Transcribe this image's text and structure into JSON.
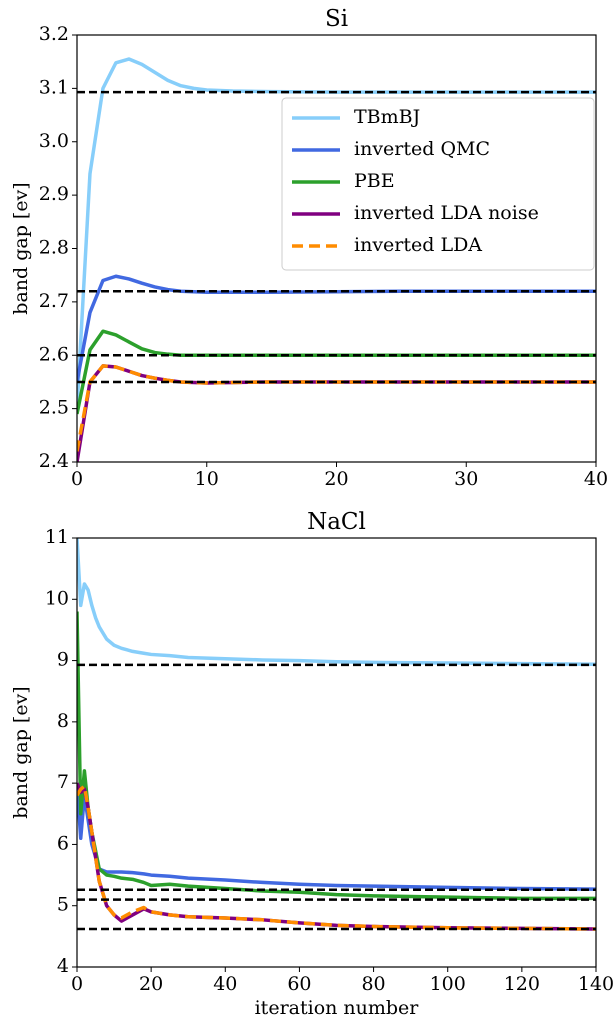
{
  "chart_data": [
    {
      "type": "line",
      "title": "Si",
      "ylabel": "band gap [ev]",
      "x": [
        0,
        1,
        2,
        3,
        4,
        5,
        6,
        7,
        8,
        9,
        10,
        12,
        15,
        20,
        25,
        30,
        35,
        40
      ],
      "xlim": [
        0,
        40
      ],
      "xticks": [
        0,
        10,
        20,
        30,
        40
      ],
      "ylim": [
        2.4,
        3.2
      ],
      "yticks": [
        {
          "value": 2.4,
          "label": "2.4"
        },
        2.5,
        2.6,
        2.7,
        2.8,
        2.9,
        {
          "value": 3.0,
          "label": "3.0"
        },
        3.1,
        3.2
      ],
      "hlines": [
        3.093,
        2.72,
        2.6,
        2.55
      ],
      "legend": "upper right",
      "series": [
        {
          "name": "TBmBJ",
          "color": "#87cefa",
          "values": [
            2.5,
            2.94,
            3.1,
            3.148,
            3.155,
            3.145,
            3.13,
            3.115,
            3.105,
            3.1,
            3.097,
            3.095,
            3.094,
            3.093,
            3.093,
            3.093,
            3.093,
            3.093
          ]
        },
        {
          "name": "inverted QMC",
          "color": "#4169e1",
          "values": [
            2.55,
            2.68,
            2.74,
            2.748,
            2.743,
            2.735,
            2.728,
            2.723,
            2.72,
            2.719,
            2.718,
            2.718,
            2.718,
            2.719,
            2.72,
            2.72,
            2.72,
            2.72
          ]
        },
        {
          "name": "PBE",
          "color": "#2ca02c",
          "values": [
            2.49,
            2.61,
            2.645,
            2.638,
            2.625,
            2.612,
            2.605,
            2.602,
            2.6,
            2.6,
            2.6,
            2.6,
            2.6,
            2.6,
            2.6,
            2.6,
            2.6,
            2.6
          ]
        },
        {
          "name": "inverted LDA noise",
          "color": "#800080",
          "values": [
            2.4,
            2.55,
            2.58,
            2.578,
            2.57,
            2.562,
            2.557,
            2.553,
            2.55,
            2.549,
            2.548,
            2.549,
            2.55,
            2.55,
            2.55,
            2.55,
            2.55,
            2.55
          ]
        },
        {
          "name": "inverted LDA",
          "color": "#ff8c00",
          "dashed": true,
          "values": [
            2.42,
            2.55,
            2.58,
            2.578,
            2.57,
            2.562,
            2.557,
            2.553,
            2.55,
            2.549,
            2.548,
            2.549,
            2.55,
            2.55,
            2.55,
            2.55,
            2.55,
            2.55
          ]
        }
      ]
    },
    {
      "type": "line",
      "title": "NaCl",
      "ylabel": "band gap [ev]",
      "xlabel": "iteration number",
      "x": [
        0,
        1,
        2,
        3,
        4,
        5,
        6,
        8,
        10,
        12,
        15,
        18,
        20,
        25,
        30,
        40,
        50,
        60,
        70,
        80,
        100,
        120,
        140
      ],
      "xlim": [
        0,
        140
      ],
      "xticks": [
        0,
        20,
        40,
        60,
        80,
        100,
        120,
        140
      ],
      "ylim": [
        4,
        11
      ],
      "yticks": [
        4,
        5,
        6,
        7,
        8,
        9,
        10,
        11
      ],
      "hlines": [
        8.93,
        5.26,
        5.1,
        4.62
      ],
      "series": [
        {
          "color": "#87cefa",
          "values": [
            11,
            9.9,
            10.25,
            10.15,
            9.9,
            9.7,
            9.55,
            9.35,
            9.25,
            9.2,
            9.15,
            9.12,
            9.1,
            9.08,
            9.05,
            9.03,
            9.01,
            9.0,
            8.98,
            8.97,
            8.96,
            8.95,
            8.94
          ]
        },
        {
          "color": "#4169e1",
          "values": [
            7.0,
            6.1,
            6.8,
            6.4,
            6.0,
            5.8,
            5.6,
            5.55,
            5.55,
            5.55,
            5.54,
            5.52,
            5.5,
            5.48,
            5.45,
            5.42,
            5.38,
            5.35,
            5.33,
            5.32,
            5.3,
            5.28,
            5.27
          ]
        },
        {
          "color": "#2ca02c",
          "values": [
            9.8,
            6.5,
            7.2,
            6.6,
            6.2,
            5.9,
            5.6,
            5.5,
            5.48,
            5.45,
            5.43,
            5.38,
            5.33,
            5.35,
            5.32,
            5.28,
            5.24,
            5.22,
            5.18,
            5.16,
            5.14,
            5.12,
            5.12
          ]
        },
        {
          "color": "#800080",
          "values": [
            7.0,
            6.85,
            6.9,
            6.6,
            6.2,
            5.8,
            5.4,
            5.0,
            4.85,
            4.75,
            4.85,
            4.95,
            4.9,
            4.85,
            4.82,
            4.8,
            4.77,
            4.72,
            4.68,
            4.66,
            4.64,
            4.63,
            4.62
          ]
        },
        {
          "color": "#ff8c00",
          "dashed": true,
          "values": [
            6.8,
            6.9,
            6.95,
            6.6,
            6.2,
            5.8,
            5.4,
            5.0,
            4.85,
            4.8,
            4.9,
            4.97,
            4.9,
            4.85,
            4.82,
            4.8,
            4.77,
            4.72,
            4.68,
            4.66,
            4.64,
            4.63,
            4.62
          ]
        }
      ]
    }
  ]
}
